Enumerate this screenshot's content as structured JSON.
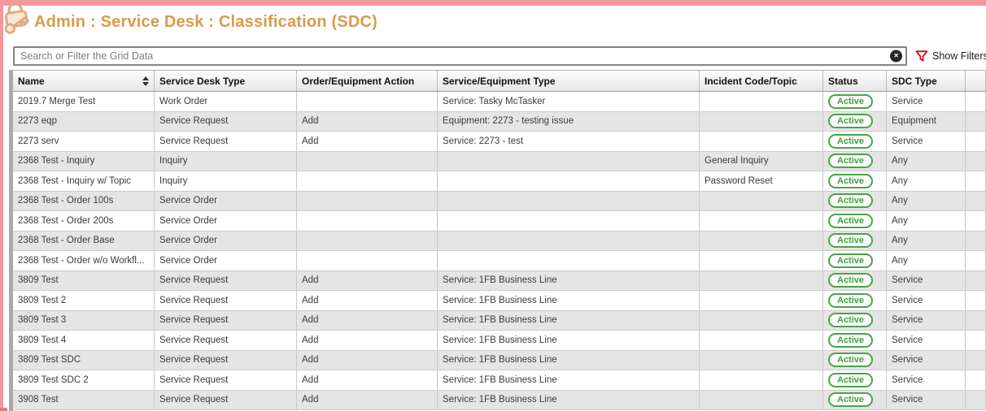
{
  "page": {
    "title": "Admin : Service Desk : Classification (SDC)",
    "accent_pink": "#f4979c",
    "title_color": "#d89a4e"
  },
  "search": {
    "placeholder": "Search or Filter the Grid Data",
    "clear_glyph": "×",
    "show_filters_label": "Show Filters",
    "funnel_color": "#cc1111"
  },
  "icons": {
    "app": "lock-and-key-icon",
    "clear": "clear-circle-x-icon",
    "filter": "funnel-icon",
    "sort": "sort-updown-icon"
  },
  "table": {
    "columns": [
      "Name",
      "Service Desk Type",
      "Order/Equipment Action",
      "Service/Equipment Type",
      "Incident Code/Topic",
      "Status",
      "SDC Type",
      ""
    ],
    "status_border_color": "#49a449",
    "status_text_color": "#3f9e3f",
    "rows": [
      {
        "name": "2019.7 Merge Test",
        "type": "Work Order",
        "action": "",
        "service": "Service: Tasky McTasker",
        "incident": "",
        "status": "Active",
        "sdc": "Service"
      },
      {
        "name": "2273 eqp",
        "type": "Service Request",
        "action": "Add",
        "service": "Equipment: 2273 - testing issue",
        "incident": "",
        "status": "Active",
        "sdc": "Equipment"
      },
      {
        "name": "2273 serv",
        "type": "Service Request",
        "action": "Add",
        "service": "Service: 2273 - test",
        "incident": "",
        "status": "Active",
        "sdc": "Service"
      },
      {
        "name": "2368 Test - Inquiry",
        "type": "Inquiry",
        "action": "",
        "service": "",
        "incident": "General Inquiry",
        "status": "Active",
        "sdc": "Any"
      },
      {
        "name": "2368 Test - Inquiry w/ Topic",
        "type": "Inquiry",
        "action": "",
        "service": "",
        "incident": "Password Reset",
        "status": "Active",
        "sdc": "Any"
      },
      {
        "name": "2368 Test - Order 100s",
        "type": "Service Order",
        "action": "",
        "service": "",
        "incident": "",
        "status": "Active",
        "sdc": "Any"
      },
      {
        "name": "2368 Test - Order 200s",
        "type": "Service Order",
        "action": "",
        "service": "",
        "incident": "",
        "status": "Active",
        "sdc": "Any"
      },
      {
        "name": "2368 Test - Order Base",
        "type": "Service Order",
        "action": "",
        "service": "",
        "incident": "",
        "status": "Active",
        "sdc": "Any"
      },
      {
        "name": "2368 Test - Order w/o Workfl...",
        "type": "Service Order",
        "action": "",
        "service": "",
        "incident": "",
        "status": "Active",
        "sdc": "Any"
      },
      {
        "name": "3809 Test",
        "type": "Service Request",
        "action": "Add",
        "service": "Service: 1FB Business Line",
        "incident": "",
        "status": "Active",
        "sdc": "Service"
      },
      {
        "name": "3809 Test 2",
        "type": "Service Request",
        "action": "Add",
        "service": "Service: 1FB Business Line",
        "incident": "",
        "status": "Active",
        "sdc": "Service"
      },
      {
        "name": "3809 Test 3",
        "type": "Service Request",
        "action": "Add",
        "service": "Service: 1FB Business Line",
        "incident": "",
        "status": "Active",
        "sdc": "Service"
      },
      {
        "name": "3809 Test 4",
        "type": "Service Request",
        "action": "Add",
        "service": "Service: 1FB Business Line",
        "incident": "",
        "status": "Active",
        "sdc": "Service"
      },
      {
        "name": "3809 Test SDC",
        "type": "Service Request",
        "action": "Add",
        "service": "Service: 1FB Business Line",
        "incident": "",
        "status": "Active",
        "sdc": "Service"
      },
      {
        "name": "3809 Test SDC 2",
        "type": "Service Request",
        "action": "Add",
        "service": "Service: 1FB Business Line",
        "incident": "",
        "status": "Active",
        "sdc": "Service"
      },
      {
        "name": "3908 Test",
        "type": "Service Request",
        "action": "Add",
        "service": "Service: 1FB Business Line",
        "incident": "",
        "status": "Active",
        "sdc": "Service"
      }
    ]
  }
}
